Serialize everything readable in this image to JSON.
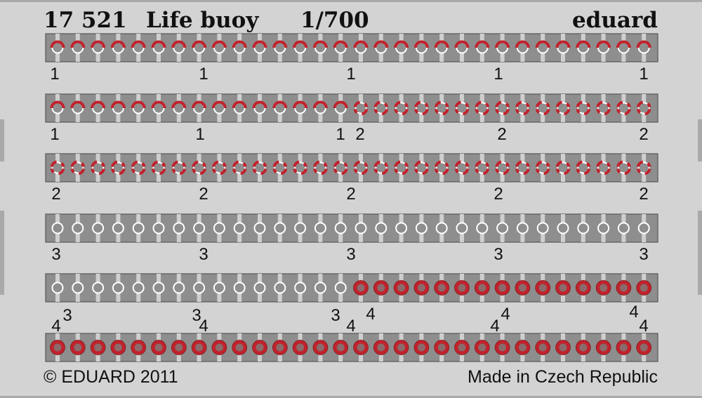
{
  "header": {
    "code": "17 521",
    "title": "Life buoy",
    "scale": "1/700",
    "brand": "eduard"
  },
  "footer": {
    "copyright": "© EDUARD 2011",
    "origin": "Made in Czech Republic"
  },
  "colors": {
    "background": "#d3d3d3",
    "strip": "#8e8e8e",
    "red": "#c0222c",
    "white": "#ffffff"
  },
  "ring_types": {
    "1": "white ring, top half red",
    "2": "white ring, alternating red quarters",
    "3": "plain white ring",
    "4": "solid red ring"
  },
  "rows": [
    {
      "rings": [
        {
          "type": "1",
          "count": 30
        }
      ],
      "labels": [
        {
          "text": "1"
        },
        {
          "text": "1"
        },
        {
          "text": "1"
        },
        {
          "text": "1"
        },
        {
          "text": "1"
        }
      ]
    },
    {
      "rings": [
        {
          "type": "1",
          "count": 15
        },
        {
          "type": "2",
          "count": 15
        }
      ],
      "labels": [
        {
          "text": "1"
        },
        {
          "text": "1"
        },
        {
          "text": "1"
        },
        {
          "text": "2"
        },
        {
          "text": "2"
        },
        {
          "text": "2"
        }
      ]
    },
    {
      "rings": [
        {
          "type": "2",
          "count": 30
        }
      ],
      "labels": [
        {
          "text": "2"
        },
        {
          "text": "2"
        },
        {
          "text": "2"
        },
        {
          "text": "2"
        },
        {
          "text": "2"
        }
      ]
    },
    {
      "rings": [
        {
          "type": "3",
          "count": 30
        }
      ],
      "labels": [
        {
          "text": "3"
        },
        {
          "text": "3"
        },
        {
          "text": "3"
        },
        {
          "text": "3"
        },
        {
          "text": "3"
        }
      ]
    },
    {
      "rings": [
        {
          "type": "3",
          "count": 15
        },
        {
          "type": "4",
          "count": 15
        }
      ],
      "labels": [
        {
          "text": "4"
        },
        {
          "text": "3"
        },
        {
          "text": "3"
        },
        {
          "text": "4"
        },
        {
          "text": "3"
        },
        {
          "text": "4"
        },
        {
          "text": "4"
        },
        {
          "text": "4"
        },
        {
          "text": "4"
        },
        {
          "text": "4"
        },
        {
          "text": "4"
        }
      ]
    },
    {
      "rings": [
        {
          "type": "4",
          "count": 30
        }
      ],
      "labels": []
    }
  ]
}
